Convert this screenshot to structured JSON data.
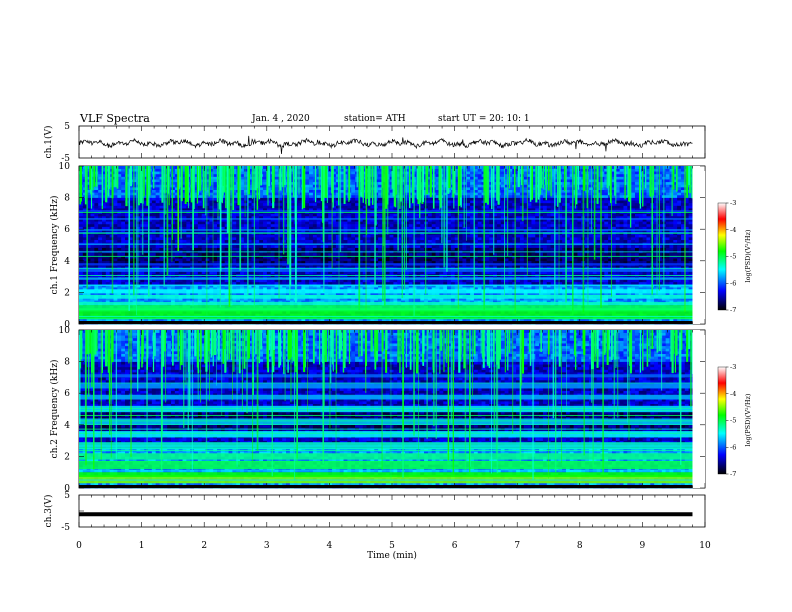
{
  "header": {
    "title": "VLF  Spectra",
    "date": "Jan. 4  , 2020",
    "station": "station= ATH",
    "start_ut": "start  UT  =   20: 10: 1"
  },
  "chart_data": [
    {
      "type": "line",
      "panel": "ch1-waveform",
      "ylabel": "ch.1(V)",
      "ylim": [
        -5,
        5
      ],
      "yticks": [
        "5",
        "-5"
      ],
      "xlim": [
        0,
        10
      ],
      "trace": "black noisy waveform centred slightly below 0 V"
    },
    {
      "type": "heatmap",
      "panel": "ch1-spectrogram",
      "ylabel": "ch.1 Frequency  (kHz)",
      "ylim": [
        0,
        10
      ],
      "yticks": [
        "0",
        "2",
        "4",
        "6",
        "8",
        "10"
      ],
      "xlim": [
        0,
        10
      ],
      "colorbar": {
        "label": "log(PSD)(V²/Hz)",
        "range": [
          -7,
          -3
        ],
        "ticks": [
          "-3",
          "-4",
          "-5",
          "-6",
          "-7"
        ]
      }
    },
    {
      "type": "heatmap",
      "panel": "ch2-spectrogram",
      "ylabel": "ch.2 Frequency  (kHz)",
      "ylim": [
        0,
        10
      ],
      "yticks": [
        "0",
        "2",
        "4",
        "6",
        "8",
        "10"
      ],
      "xlim": [
        0,
        10
      ],
      "colorbar": {
        "label": "log(PSD)(V²/Hz)",
        "range": [
          -7,
          -3
        ],
        "ticks": [
          "-3",
          "-4",
          "-5",
          "-6",
          "-7"
        ]
      }
    },
    {
      "type": "line",
      "panel": "ch3-waveform",
      "ylabel": "ch.3(V)",
      "ylim": [
        -5,
        5
      ],
      "yticks": [
        "5",
        "-5"
      ],
      "xlim": [
        0,
        10
      ],
      "trace": "thick flat black line near -1 V"
    }
  ],
  "xaxis": {
    "label": "Time  (min)",
    "ticks": [
      "0",
      "1",
      "2",
      "3",
      "4",
      "5",
      "6",
      "7",
      "8",
      "9",
      "10"
    ]
  },
  "colors": {
    "background": "#00001a",
    "colormap": [
      "#000000",
      "#0000ff",
      "#00ffff",
      "#00ff00",
      "#ffff00",
      "#ff0000",
      "#ffffff"
    ]
  }
}
